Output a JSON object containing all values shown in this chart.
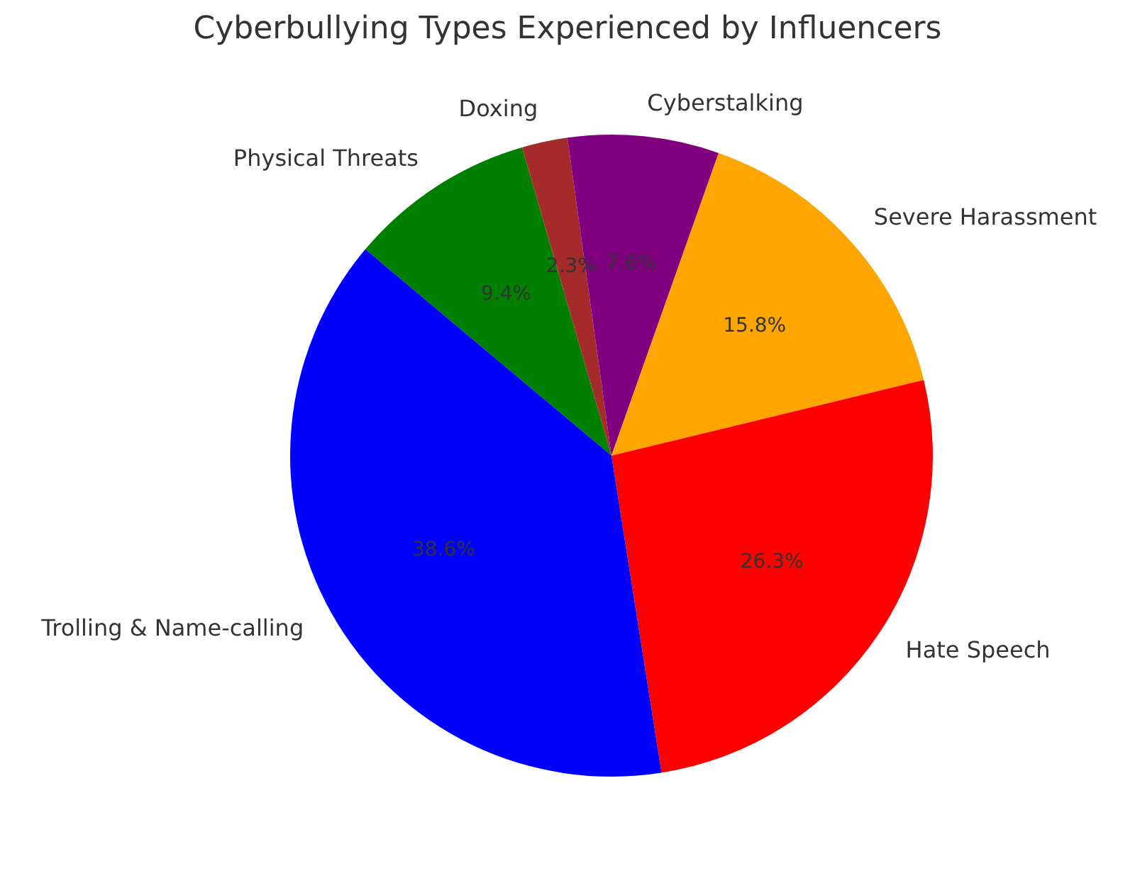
{
  "chart_data": {
    "type": "pie",
    "title": "Cyberbullying Types Experienced by Influencers",
    "categories": [
      "Physical Threats",
      "Doxing",
      "Cyberstalking",
      "Severe Harassment",
      "Hate Speech",
      "Trolling & Name-calling"
    ],
    "values": [
      9.4,
      2.3,
      7.6,
      15.8,
      26.3,
      38.6
    ],
    "colors": [
      "#008000",
      "#a52a2a",
      "#800080",
      "#ffa500",
      "#ff0000",
      "#0000ff"
    ],
    "value_labels": [
      "9.4%",
      "2.3%",
      "7.6%",
      "15.8%",
      "26.3%",
      "38.6%"
    ],
    "legend": false
  }
}
